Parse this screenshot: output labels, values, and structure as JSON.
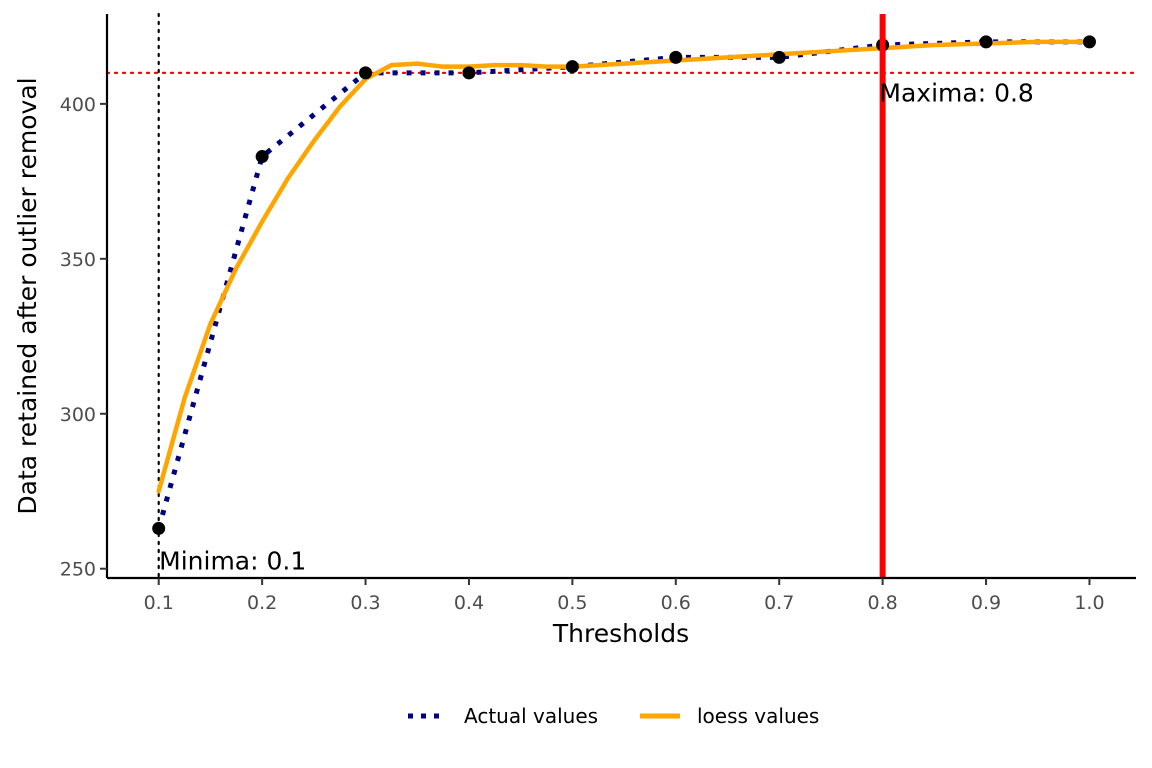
{
  "chart_data": {
    "type": "line",
    "title": "",
    "xlabel": "Thresholds",
    "ylabel": "Data retained after outlier removal",
    "xlim": [
      0.05,
      1.045
    ],
    "ylim": [
      247,
      429
    ],
    "x_ticks": [
      "0.1",
      "0.2",
      "0.3",
      "0.4",
      "0.5",
      "0.6",
      "0.7",
      "0.8",
      "0.9",
      "1.0"
    ],
    "y_ticks": [
      "250",
      "300",
      "350",
      "400"
    ],
    "grid": false,
    "legend_position": "bottom",
    "series": [
      {
        "name": "Actual values",
        "style": "dotted",
        "color": "#000080",
        "x": [
          0.1,
          0.2,
          0.3,
          0.4,
          0.5,
          0.6,
          0.7,
          0.8,
          0.9,
          1.0
        ],
        "y": [
          263,
          383,
          410,
          410,
          412,
          415,
          415,
          419,
          420,
          420
        ]
      },
      {
        "name": "loess values",
        "style": "solid",
        "color": "#FFA500",
        "x": [
          0.1,
          0.125,
          0.15,
          0.175,
          0.2,
          0.225,
          0.25,
          0.275,
          0.3,
          0.325,
          0.35,
          0.375,
          0.4,
          0.425,
          0.45,
          0.475,
          0.5,
          0.55,
          0.6,
          0.65,
          0.7,
          0.75,
          0.8,
          0.85,
          0.9,
          0.95,
          1.0
        ],
        "y": [
          275,
          305,
          329,
          347,
          362,
          376,
          388,
          399,
          408,
          412.5,
          413,
          412,
          412,
          412.5,
          412.5,
          412,
          412,
          413,
          414,
          415,
          416,
          417,
          418,
          419,
          419.5,
          420,
          420
        ]
      }
    ],
    "points": {
      "color": "#000000",
      "x": [
        0.1,
        0.2,
        0.3,
        0.4,
        0.5,
        0.6,
        0.7,
        0.8,
        0.9,
        1.0
      ],
      "y": [
        263,
        383,
        410,
        410,
        412,
        415,
        415,
        419,
        420,
        420
      ]
    },
    "reference_lines": {
      "horizontal": {
        "y": 410,
        "style": "dotted",
        "color": "#FF0000"
      },
      "minima_vline": {
        "x": 0.1,
        "style": "dotted",
        "color": "#000000"
      },
      "maxima_vline": {
        "x": 0.8,
        "style": "solid",
        "color": "#FF0000"
      }
    },
    "annotations": [
      {
        "text": "Minima: 0.1",
        "x": 0.1,
        "y": 253
      },
      {
        "text": "Maxima: 0.8",
        "x": 0.8,
        "y": 402
      }
    ]
  }
}
